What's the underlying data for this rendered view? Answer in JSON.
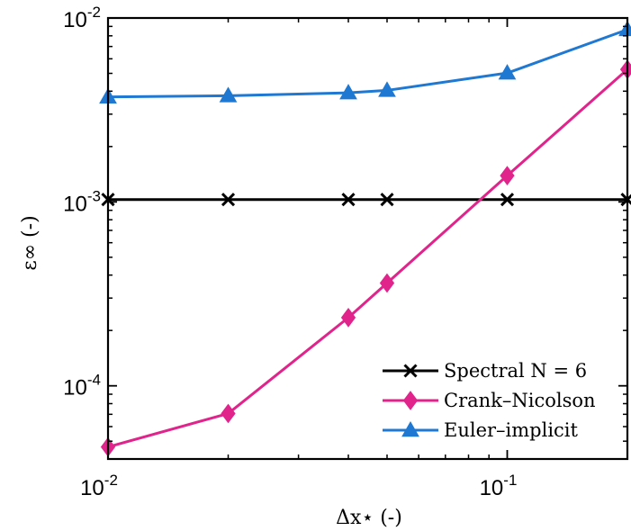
{
  "chart_data": {
    "type": "line",
    "xscale": "log",
    "yscale": "log",
    "xlim": [
      0.01,
      0.2
    ],
    "ylim": [
      4e-05,
      0.01
    ],
    "xticks": [
      {
        "value": 0.01,
        "base": "10",
        "exp": "-2"
      },
      {
        "value": 0.1,
        "base": "10",
        "exp": "-1"
      }
    ],
    "yticks": [
      {
        "value": 0.0001,
        "base": "10",
        "exp": "-4"
      },
      {
        "value": 0.001,
        "base": "10",
        "exp": "-3"
      },
      {
        "value": 0.01,
        "base": "10",
        "exp": "-2"
      }
    ],
    "xlabel": "Δx⋆ (-)",
    "ylabel": "ε∞ (-)",
    "grid": false,
    "legend_position": "bottom-right",
    "series": [
      {
        "name": "Spectral N = 6",
        "color": "#000000",
        "marker": "x",
        "x": [
          0.01,
          0.02,
          0.04,
          0.05,
          0.1,
          0.2
        ],
        "y": [
          0.00103,
          0.00103,
          0.00103,
          0.00103,
          0.00103,
          0.00103
        ]
      },
      {
        "name": "Crank–Nicolson",
        "color": "#e0248c",
        "marker": "diamond",
        "x": [
          0.01,
          0.02,
          0.04,
          0.05,
          0.1,
          0.2
        ],
        "y": [
          4.65e-05,
          7.07e-05,
          0.000235,
          0.000362,
          0.00139,
          0.00525
        ]
      },
      {
        "name": "Euler–implicit",
        "color": "#1f78d1",
        "marker": "triangle",
        "x": [
          0.01,
          0.02,
          0.04,
          0.05,
          0.1,
          0.2
        ],
        "y": [
          0.00372,
          0.00378,
          0.00392,
          0.00404,
          0.00502,
          0.00865
        ]
      }
    ]
  }
}
